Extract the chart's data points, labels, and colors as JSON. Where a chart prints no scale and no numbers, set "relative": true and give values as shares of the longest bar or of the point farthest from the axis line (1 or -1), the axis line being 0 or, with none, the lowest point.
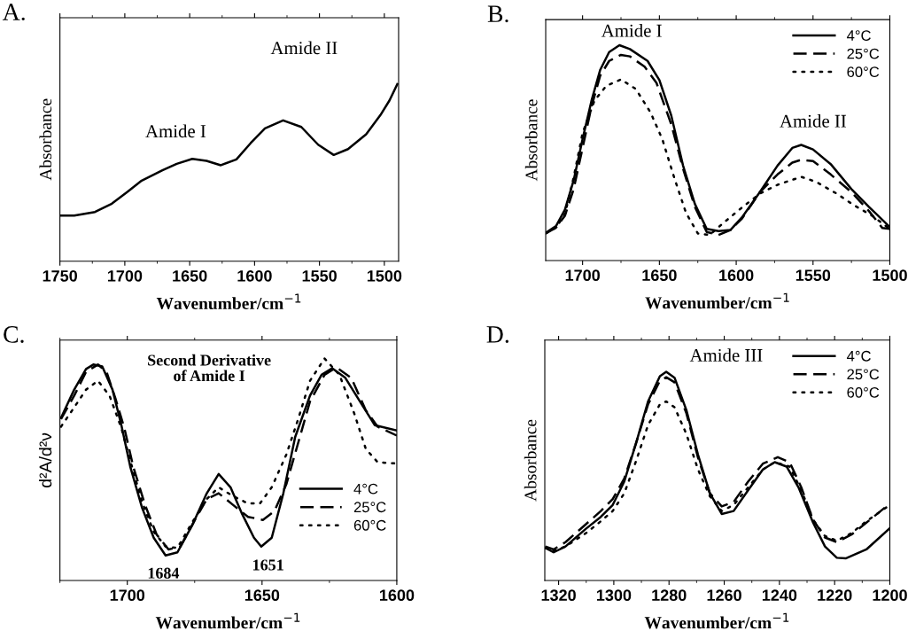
{
  "chart_data": [
    {
      "type": "line",
      "title": "A.",
      "xlabel": "Wavenumber/cm$^{−1}$",
      "ylabel": "Absorbance",
      "relative": true,
      "xlim": [
        1750,
        1489
      ],
      "xticks": [
        1750,
        1700,
        1650,
        1600,
        1550,
        1500
      ],
      "grid": false,
      "legend": false,
      "annotations": [
        "Amide I",
        "Amide II"
      ],
      "series": [
        {
          "color": "#000000",
          "line_style": "solid",
          "x": [
            1750,
            1739,
            1723,
            1710,
            1698,
            1687,
            1671,
            1660,
            1648,
            1637,
            1626,
            1614,
            1603,
            1592,
            1578,
            1564,
            1551,
            1539,
            1528,
            1514,
            1503,
            1496,
            1490
          ],
          "values": [
            0.258,
            0.258,
            0.278,
            0.325,
            0.392,
            0.455,
            0.513,
            0.55,
            0.578,
            0.567,
            0.542,
            0.575,
            0.667,
            0.75,
            0.795,
            0.758,
            0.658,
            0.6,
            0.633,
            0.717,
            0.825,
            0.908,
            1.0
          ]
        }
      ]
    },
    {
      "type": "line",
      "title": "B.",
      "xlabel": "Wavenumber/cm$^{−1}$",
      "ylabel": "Absorbance",
      "relative": true,
      "xlim": [
        1724,
        1500
      ],
      "xticks": [
        1700,
        1650,
        1600,
        1550,
        1500
      ],
      "grid": false,
      "legend": "top right",
      "annotations": [
        "Amide I",
        "Amide II"
      ],
      "series": [
        {
          "name": "4°C",
          "color": "#000000",
          "line_style": "solid",
          "x": [
            1724,
            1717.3,
            1711.5,
            1705.8,
            1700,
            1694.2,
            1688.5,
            1682.7,
            1676,
            1669.2,
            1657.7,
            1650,
            1642.3,
            1634.6,
            1626.9,
            1619.2,
            1611.5,
            1603.8,
            1596.2,
            1584.6,
            1573.1,
            1563.5,
            1557.7,
            1550,
            1538.5,
            1525,
            1513.5,
            1500
          ],
          "values": [
            0.129,
            0.16,
            0.236,
            0.373,
            0.564,
            0.742,
            0.886,
            0.968,
            1.0,
            0.982,
            0.927,
            0.838,
            0.674,
            0.441,
            0.263,
            0.147,
            0.137,
            0.142,
            0.201,
            0.318,
            0.441,
            0.523,
            0.537,
            0.516,
            0.448,
            0.332,
            0.249,
            0.156
          ]
        },
        {
          "name": "25°C",
          "color": "#000000",
          "line_style": "dashed",
          "x": [
            1724,
            1717.3,
            1711.5,
            1705.8,
            1700,
            1694.2,
            1688.5,
            1682.7,
            1675,
            1669.2,
            1659.6,
            1651.9,
            1642.3,
            1634.6,
            1626.9,
            1619.2,
            1611.5,
            1603.8,
            1596.2,
            1584.6,
            1573.1,
            1563.5,
            1557.7,
            1550,
            1538.5,
            1525,
            1513.5,
            1504.8,
            1500
          ],
          "values": [
            0.126,
            0.153,
            0.208,
            0.332,
            0.523,
            0.715,
            0.859,
            0.927,
            0.955,
            0.948,
            0.9,
            0.825,
            0.633,
            0.427,
            0.249,
            0.133,
            0.119,
            0.142,
            0.195,
            0.318,
            0.4,
            0.455,
            0.468,
            0.462,
            0.4,
            0.318,
            0.229,
            0.151,
            0.147
          ]
        },
        {
          "name": "60°C",
          "color": "#000000",
          "line_style": "dotted",
          "x": [
            1724,
            1717.3,
            1711.5,
            1705.8,
            1700,
            1692.3,
            1684.6,
            1675,
            1665.4,
            1655.8,
            1648.1,
            1640.4,
            1632.7,
            1625,
            1617.3,
            1609.6,
            1598.1,
            1584.6,
            1573.1,
            1563.5,
            1557.7,
            1548.1,
            1534.6,
            1523.1,
            1511.5,
            1500
          ],
          "values": [
            0.126,
            0.153,
            0.215,
            0.386,
            0.592,
            0.742,
            0.811,
            0.841,
            0.797,
            0.688,
            0.564,
            0.386,
            0.222,
            0.126,
            0.119,
            0.167,
            0.236,
            0.311,
            0.352,
            0.375,
            0.389,
            0.366,
            0.311,
            0.256,
            0.208,
            0.147
          ]
        }
      ]
    },
    {
      "type": "line",
      "title": "C.",
      "xlabel": "Wavenumber/cm$^{−1}$",
      "ylabel": "d²A/d²ν",
      "relative": true,
      "xlim": [
        1725,
        1600
      ],
      "xticks": [
        1700,
        1650,
        1600
      ],
      "grid": false,
      "legend": "right",
      "annotations": [
        "Second Derivative\nof Amide I",
        "1684",
        "1651"
      ],
      "series": [
        {
          "name": "4°C",
          "color": "#000000",
          "line_style": "solid",
          "x": [
            1724.6,
            1719.7,
            1715.3,
            1712.6,
            1709.3,
            1705.5,
            1702.2,
            1698.9,
            1694.5,
            1690.2,
            1685.8,
            1681.4,
            1676,
            1670.5,
            1666.1,
            1661.7,
            1657.4,
            1653,
            1650.3,
            1646.4,
            1642.1,
            1637.7,
            1632.2,
            1627.9,
            1624,
            1619.1,
            1613.7,
            1608.2,
            1600
          ],
          "values": [
            0.733,
            0.86,
            0.953,
            0.973,
            0.964,
            0.86,
            0.7,
            0.513,
            0.327,
            0.193,
            0.113,
            0.127,
            0.247,
            0.393,
            0.48,
            0.42,
            0.3,
            0.193,
            0.153,
            0.193,
            0.393,
            0.647,
            0.833,
            0.927,
            0.956,
            0.913,
            0.807,
            0.7,
            0.676
          ]
        },
        {
          "name": "25°C",
          "color": "#000000",
          "line_style": "dashed",
          "x": [
            1724.6,
            1719.7,
            1715.3,
            1710.9,
            1707.7,
            1704.4,
            1701.1,
            1697.8,
            1693.4,
            1689.1,
            1684.7,
            1680.3,
            1674.9,
            1670.5,
            1666.1,
            1660.7,
            1655.2,
            1649.7,
            1645.4,
            1641,
            1636.6,
            1632.2,
            1626.8,
            1622.4,
            1616.9,
            1611.5,
            1607.1,
            1600
          ],
          "values": [
            0.727,
            0.833,
            0.94,
            0.973,
            0.94,
            0.82,
            0.687,
            0.513,
            0.34,
            0.207,
            0.14,
            0.153,
            0.273,
            0.367,
            0.393,
            0.34,
            0.287,
            0.273,
            0.313,
            0.433,
            0.62,
            0.807,
            0.927,
            0.96,
            0.913,
            0.767,
            0.693,
            0.653
          ]
        },
        {
          "name": "60°C",
          "color": "#000000",
          "line_style": "dotted",
          "x": [
            1724.6,
            1719.7,
            1715.3,
            1710.9,
            1706.6,
            1702.2,
            1698.9,
            1694.5,
            1690.2,
            1685.8,
            1681.4,
            1676,
            1670.5,
            1666.1,
            1660.7,
            1655.2,
            1650.8,
            1646.4,
            1641,
            1636.6,
            1632.2,
            1626.8,
            1621.3,
            1615.8,
            1611.5,
            1607.1,
            1600
          ],
          "values": [
            0.693,
            0.78,
            0.86,
            0.9,
            0.833,
            0.687,
            0.54,
            0.353,
            0.22,
            0.153,
            0.147,
            0.26,
            0.367,
            0.42,
            0.38,
            0.347,
            0.347,
            0.42,
            0.567,
            0.727,
            0.9,
            1.0,
            0.927,
            0.753,
            0.593,
            0.533,
            0.527
          ]
        }
      ]
    },
    {
      "type": "line",
      "title": "D.",
      "xlabel": "Wavenumber/cm$^{−1}$",
      "ylabel": "Absorbance",
      "relative": true,
      "xlim": [
        1325,
        1200
      ],
      "xticks": [
        1320,
        1300,
        1280,
        1260,
        1240,
        1220,
        1200
      ],
      "grid": false,
      "legend": "top right",
      "annotations": [
        "Amide III"
      ],
      "series": [
        {
          "name": "4°C",
          "color": "#000000",
          "line_style": "solid",
          "x": [
            1324.8,
            1321.8,
            1317.5,
            1310.1,
            1304.7,
            1300.4,
            1296.2,
            1291.9,
            1287.6,
            1283.3,
            1281,
            1278,
            1273.7,
            1269.5,
            1265.2,
            1260.9,
            1256.6,
            1251.3,
            1246,
            1241.7,
            1237.4,
            1233.1,
            1227.8,
            1223.5,
            1219.2,
            1216,
            1208.5,
            1200
          ],
          "values": [
            0.156,
            0.135,
            0.163,
            0.248,
            0.305,
            0.362,
            0.475,
            0.66,
            0.858,
            0.979,
            1.0,
            0.972,
            0.816,
            0.603,
            0.418,
            0.319,
            0.333,
            0.433,
            0.532,
            0.567,
            0.546,
            0.447,
            0.277,
            0.163,
            0.109,
            0.106,
            0.149,
            0.251
          ]
        },
        {
          "name": "25°C",
          "color": "#000000",
          "line_style": "dashed",
          "x": [
            1324.8,
            1321.8,
            1317.5,
            1310.1,
            1304.7,
            1300.4,
            1296.2,
            1291.9,
            1287.6,
            1283.3,
            1281,
            1278,
            1273.7,
            1269.5,
            1265.2,
            1260.9,
            1256.6,
            1251.3,
            1246,
            1240.6,
            1236.3,
            1232.1,
            1227.8,
            1223.5,
            1219.2,
            1213.9,
            1208.5,
            1200
          ],
          "values": [
            0.163,
            0.149,
            0.184,
            0.27,
            0.333,
            0.39,
            0.489,
            0.66,
            0.844,
            0.957,
            0.974,
            0.95,
            0.801,
            0.589,
            0.418,
            0.355,
            0.376,
            0.475,
            0.56,
            0.591,
            0.567,
            0.447,
            0.291,
            0.206,
            0.184,
            0.22,
            0.277,
            0.369
          ]
        },
        {
          "name": "60°C",
          "color": "#000000",
          "line_style": "dotted",
          "x": [
            1324.8,
            1321.8,
            1317.5,
            1310.1,
            1304.7,
            1300.4,
            1296.2,
            1291.9,
            1287.6,
            1283.3,
            1281,
            1278,
            1273.7,
            1269.5,
            1265.2,
            1260.9,
            1256.6,
            1251.3,
            1246,
            1241.7,
            1236.3,
            1232.1,
            1227.8,
            1223.5,
            1219.2,
            1213.9,
            1208.5,
            1200
          ],
          "values": [
            0.156,
            0.142,
            0.163,
            0.227,
            0.284,
            0.333,
            0.418,
            0.574,
            0.745,
            0.844,
            0.858,
            0.83,
            0.702,
            0.532,
            0.404,
            0.333,
            0.362,
            0.447,
            0.532,
            0.567,
            0.546,
            0.433,
            0.291,
            0.213,
            0.191,
            0.227,
            0.284,
            0.362
          ]
        }
      ]
    }
  ]
}
